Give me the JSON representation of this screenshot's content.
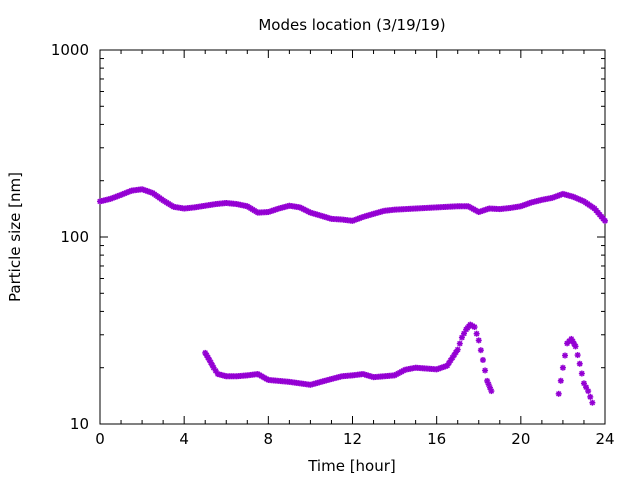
{
  "chart_data": {
    "type": "scatter",
    "title": "Modes location (3/19/19)",
    "xlabel": "Time [hour]",
    "ylabel": "Particle size [nm]",
    "xlim": [
      0,
      24
    ],
    "ylim": [
      10,
      1000
    ],
    "yscale": "log",
    "grid": false,
    "legend": "none",
    "xticks": [
      0,
      4,
      8,
      12,
      16,
      20,
      24
    ],
    "xtick_labels": [
      "0",
      "4",
      "8",
      "12",
      "16",
      "20",
      "24"
    ],
    "yticks": [
      10,
      100,
      1000
    ],
    "ytick_labels": [
      "10",
      "100",
      "1000"
    ],
    "marker_color": "#9400d3",
    "series": [
      {
        "x": [
          0,
          0.5,
          1,
          1.5,
          2,
          2.5,
          3,
          3.5,
          4,
          4.5,
          5,
          5.5,
          6,
          6.5,
          7,
          7.5,
          8,
          8.5,
          9,
          9.5,
          10,
          10.5,
          11,
          11.5,
          12,
          12.5,
          13,
          13.5,
          14,
          14.5,
          15,
          15.5,
          16,
          16.5,
          17,
          17.5,
          18,
          18.5,
          19,
          19.5,
          20,
          20.5,
          21,
          21.5,
          22,
          22.5,
          23,
          23.5,
          24
        ],
        "values": [
          155,
          160,
          168,
          177,
          180,
          172,
          157,
          145,
          142,
          144,
          147,
          150,
          152,
          150,
          146,
          135,
          136,
          142,
          147,
          144,
          135,
          130,
          125,
          124,
          122,
          128,
          133,
          138,
          140,
          141,
          142,
          143,
          144,
          145,
          146,
          146,
          136,
          142,
          141,
          143,
          146,
          153,
          158,
          162,
          170,
          164,
          155,
          142,
          122
        ]
      },
      {
        "x": [
          5,
          5.2,
          5.4,
          5.6,
          6,
          6.5,
          7,
          7.5,
          8,
          8.5,
          9,
          9.5,
          10,
          10.5,
          11,
          11.5,
          12,
          12.5,
          13,
          13.5,
          14,
          14.5,
          15,
          15.5,
          16,
          16.5,
          17,
          17.2,
          17.4,
          17.6,
          17.8,
          18,
          18.2,
          18.4,
          18.6
        ],
        "values": [
          24,
          22,
          20,
          18.5,
          18,
          18,
          18.2,
          18.5,
          17.2,
          17,
          16.8,
          16.5,
          16.2,
          16.8,
          17.4,
          18,
          18.2,
          18.5,
          17.8,
          18,
          18.2,
          19.5,
          20,
          19.8,
          19.6,
          20.5,
          25,
          29,
          32,
          34,
          33,
          28,
          22,
          17,
          15
        ]
      },
      {
        "x": [
          21.8,
          22,
          22.2,
          22.4,
          22.6,
          22.8,
          23,
          23.2,
          23.4
        ],
        "values": [
          14.5,
          20,
          27,
          28.5,
          26,
          21,
          16.5,
          15,
          13
        ]
      }
    ]
  }
}
